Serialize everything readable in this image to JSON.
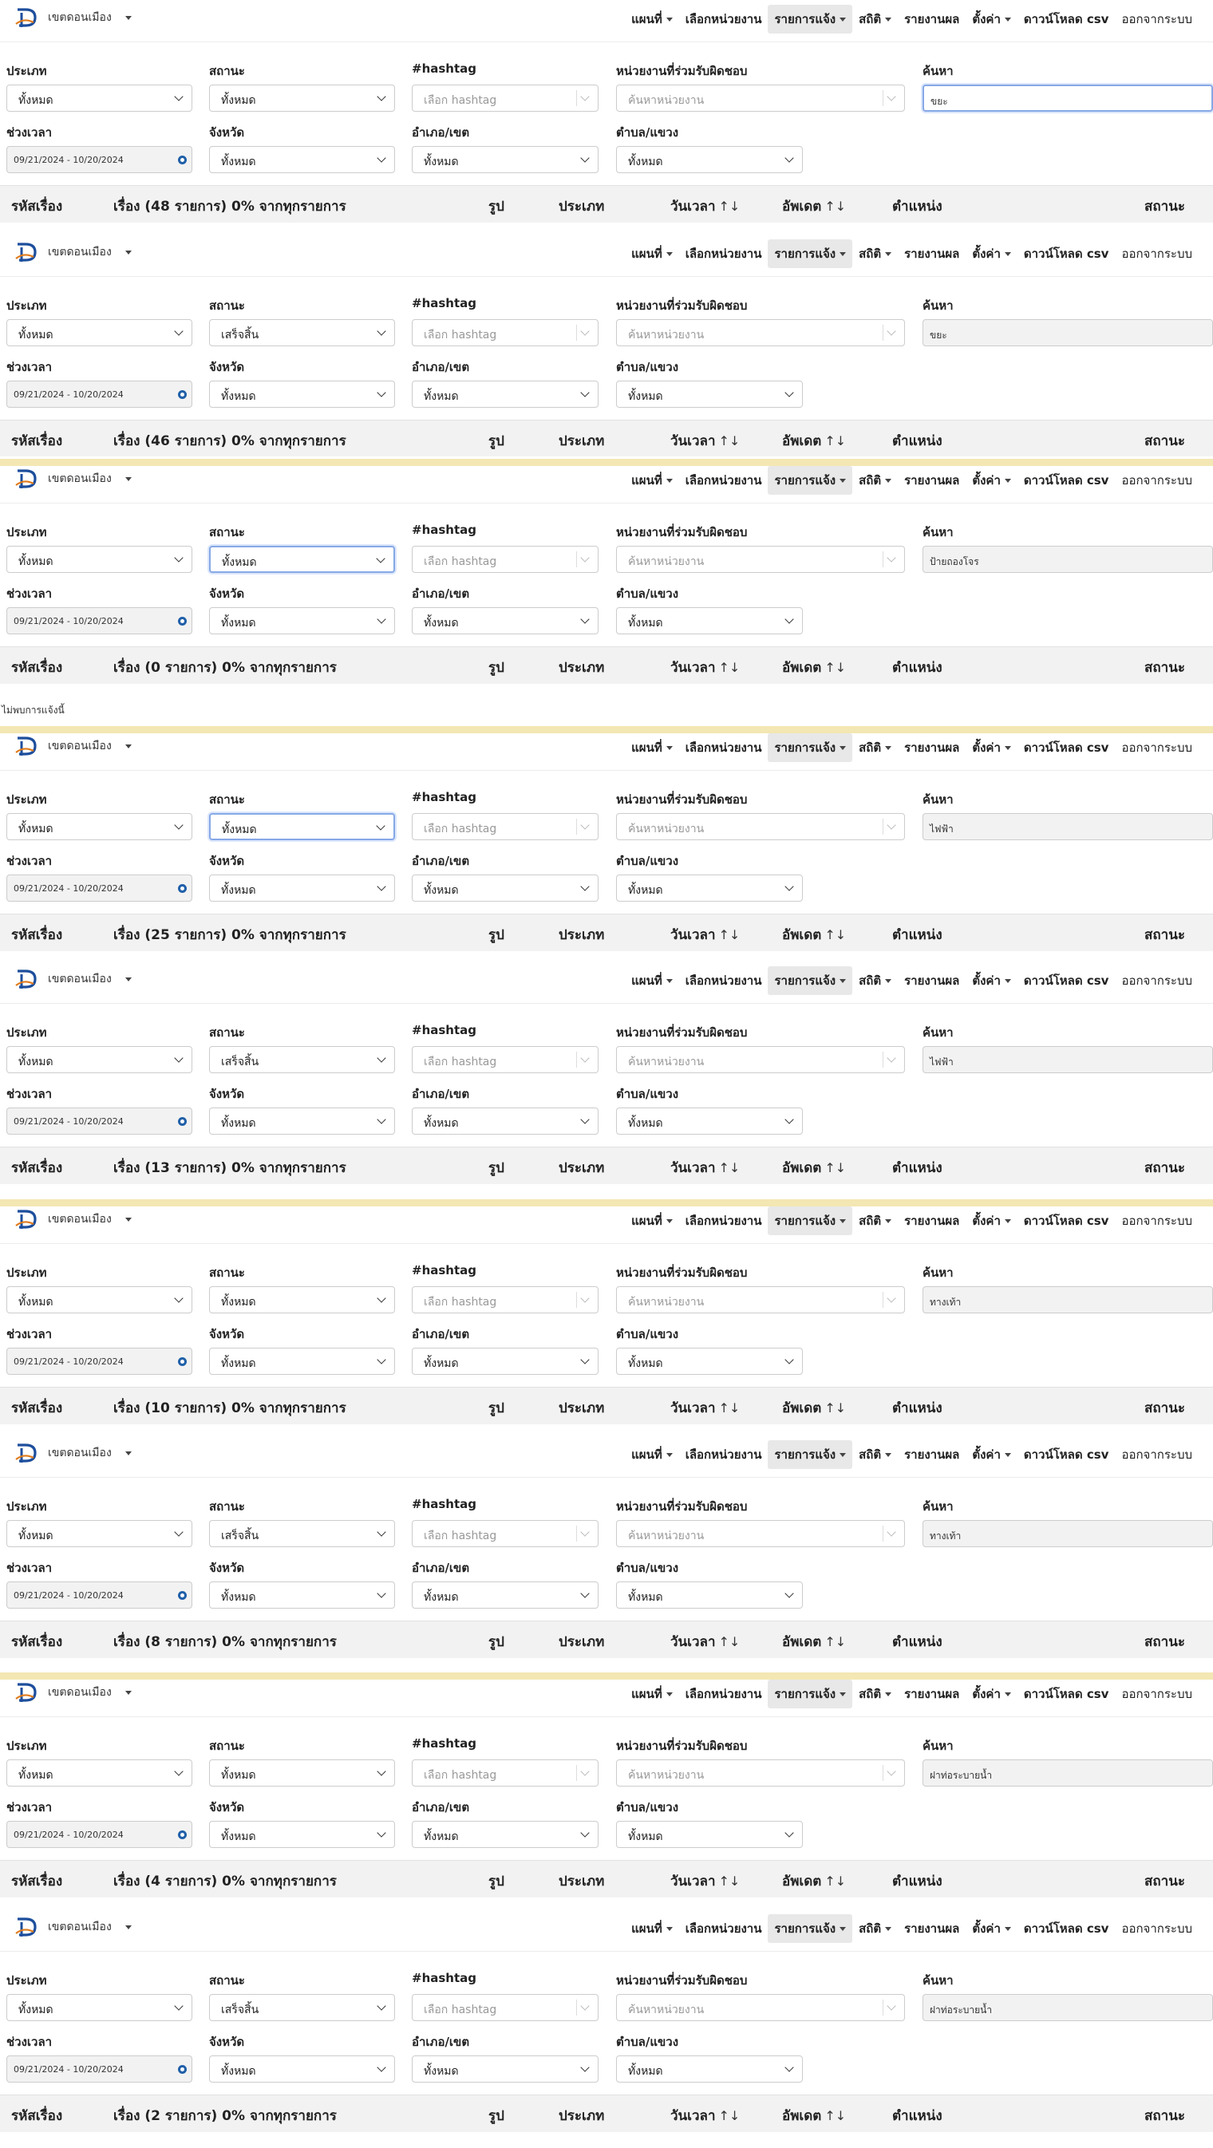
{
  "brand": {
    "name": "เขตดอนเมือง"
  },
  "menu": [
    {
      "label": "แผนที่",
      "dropdown": true
    },
    {
      "label": "เลือกหน่วยงาน",
      "dropdown": false
    },
    {
      "label": "รายการแจ้ง",
      "dropdown": true,
      "active": true
    },
    {
      "label": "สถิติ",
      "dropdown": true
    },
    {
      "label": "รายงานผล",
      "dropdown": false
    },
    {
      "label": "ตั้งค่า",
      "dropdown": true
    },
    {
      "label": "ดาวน์โหลด csv",
      "dropdown": false
    },
    {
      "label": "ออกจากระบบ",
      "dropdown": false,
      "plain": true
    }
  ],
  "filters": {
    "type_label": "ประเภท",
    "status_label": "สถานะ",
    "hashtag_label": "#hashtag",
    "agency_label": "หน่วยงานที่ร่วมรับผิดชอบ",
    "search_label": "ค้นหา",
    "period_label": "ช่วงเวลา",
    "province_label": "จังหวัด",
    "district_label": "อำเภอ/เขต",
    "subdistrict_label": "ตำบล/แขวง",
    "all": "ทั้งหมด",
    "hashtag_placeholder": "เลือก hashtag",
    "agency_placeholder": "ค้นหาหน่วยงาน",
    "date_range": "09/21/2024 - 10/20/2024"
  },
  "table": {
    "id_col": "รหัสเรื่อง",
    "photo_col": "รูป",
    "type_col": "ประเภท",
    "time_col": "วันเวลา",
    "updated_col": "อัพเดต",
    "location_col": "ตำแหน่ง",
    "status_col": "สถานะ",
    "sort_both": "↑↓",
    "sort_up": "↑↓"
  },
  "snapshots": [
    {
      "status": "ทั้งหมด",
      "search": "ขยะ",
      "search_focus": true,
      "status_focus": false,
      "count_title": "เรื่อง (48 รายการ) 0% จากทุกรายการ",
      "empty_text": ""
    },
    {
      "status": "เสร็จสิ้น",
      "search": "ขยะ",
      "search_focus": false,
      "status_focus": false,
      "count_title": "เรื่อง (46 รายการ) 0% จากทุกรายการ",
      "empty_text": ""
    },
    {
      "status": "ทั้งหมด",
      "search": "ป้ายถองโจร",
      "search_focus": false,
      "status_focus": true,
      "count_title": "เรื่อง (0 รายการ) 0% จากทุกรายการ",
      "empty_text": "ไม่พบการแจ้งนี้"
    },
    {
      "status": "ทั้งหมด",
      "search": "ไฟฟ้า",
      "search_focus": false,
      "status_focus": true,
      "count_title": "เรื่อง (25 รายการ) 0% จากทุกรายการ",
      "empty_text": ""
    },
    {
      "status": "เสร็จสิ้น",
      "search": "ไฟฟ้า",
      "search_focus": false,
      "status_focus": false,
      "count_title": "เรื่อง (13 รายการ) 0% จากทุกรายการ",
      "empty_text": ""
    },
    {
      "status": "ทั้งหมด",
      "search": "ทางเท้า",
      "search_focus": false,
      "status_focus": false,
      "count_title": "เรื่อง (10 รายการ) 0% จากทุกรายการ",
      "empty_text": ""
    },
    {
      "status": "เสร็จสิ้น",
      "search": "ทางเท้า",
      "search_focus": false,
      "status_focus": false,
      "count_title": "เรื่อง (8 รายการ) 0% จากทุกรายการ",
      "empty_text": ""
    },
    {
      "status": "ทั้งหมด",
      "search": "ฝาท่อระบายน้ำ",
      "search_focus": false,
      "status_focus": false,
      "count_title": "เรื่อง (4 รายการ) 0% จากทุกรายการ",
      "empty_text": ""
    },
    {
      "status": "เสร็จสิ้น",
      "search": "ฝาท่อระบายน้ำ",
      "search_focus": false,
      "status_focus": false,
      "count_title": "เรื่อง (2 รายการ) 0% จากทุกรายการ",
      "empty_text": ""
    }
  ]
}
